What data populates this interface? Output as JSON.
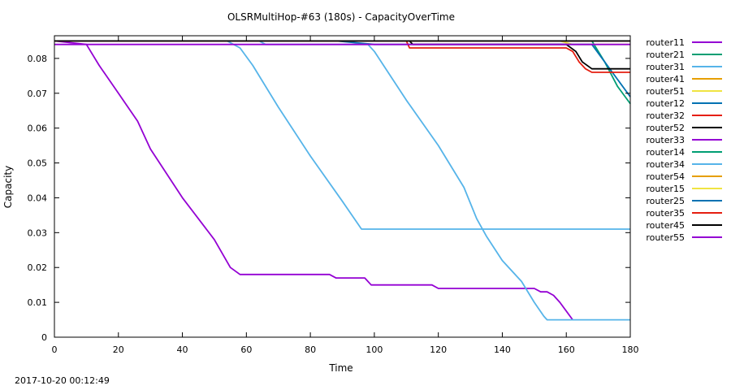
{
  "chart_data": {
    "type": "line",
    "title": "OLSRMultiHop-#63 (180s) - CapacityOverTime",
    "xlabel": "Time",
    "ylabel": "Capacity",
    "xlim": [
      0,
      180
    ],
    "ylim": [
      0,
      0.0865
    ],
    "xticks": [
      0,
      20,
      40,
      60,
      80,
      100,
      120,
      140,
      160,
      180
    ],
    "yticks": [
      0,
      0.01,
      0.02,
      0.03,
      0.04,
      0.05,
      0.06,
      0.07,
      0.08
    ],
    "ytick_labels": [
      "0",
      "0.01",
      "0.02",
      "0.03",
      "0.04",
      "0.05",
      "0.06",
      "0.07",
      "0.08"
    ],
    "grid": false,
    "legend_position": "right",
    "series": [
      {
        "name": "router11",
        "color": "#9400d3",
        "x": [
          0,
          180
        ],
        "y": [
          0.085,
          0.085
        ]
      },
      {
        "name": "router21",
        "color": "#009e73",
        "x": [
          0,
          168,
          172,
          176,
          180
        ],
        "y": [
          0.085,
          0.085,
          0.079,
          0.072,
          0.067
        ]
      },
      {
        "name": "router31",
        "color": "#56b4e9",
        "x": [
          0,
          54,
          58,
          62,
          70,
          80,
          90,
          96,
          99,
          100,
          180
        ],
        "y": [
          0.085,
          0.085,
          0.083,
          0.078,
          0.066,
          0.052,
          0.039,
          0.031,
          0.031,
          0.031,
          0.031
        ]
      },
      {
        "name": "router41",
        "color": "#e69f00",
        "x": [
          0,
          180
        ],
        "y": [
          0.085,
          0.085
        ]
      },
      {
        "name": "router51",
        "color": "#f0e442",
        "x": [
          0,
          150,
          158,
          162,
          180
        ],
        "y": [
          0.085,
          0.085,
          0.085,
          0.084,
          0.084
        ]
      },
      {
        "name": "router12",
        "color": "#0072b2",
        "x": [
          0,
          88,
          100,
          150,
          168,
          172,
          176,
          180
        ],
        "y": [
          0.085,
          0.085,
          0.084,
          0.084,
          0.084,
          0.079,
          0.074,
          0.069
        ]
      },
      {
        "name": "router32",
        "color": "#e51e10",
        "x": [
          0,
          110,
          111,
          160,
          162,
          164,
          166,
          168,
          180
        ],
        "y": [
          0.085,
          0.085,
          0.083,
          0.083,
          0.082,
          0.079,
          0.077,
          0.076,
          0.076
        ]
      },
      {
        "name": "router52",
        "color": "#000000",
        "x": [
          0,
          111,
          112,
          120,
          135,
          160,
          163,
          165,
          168,
          180
        ],
        "y": [
          0.085,
          0.085,
          0.084,
          0.084,
          0.084,
          0.084,
          0.082,
          0.079,
          0.077,
          0.077
        ]
      },
      {
        "name": "router33",
        "color": "#9400d3",
        "x": [
          0,
          10,
          14,
          20,
          26,
          30,
          40,
          50,
          55,
          58,
          60,
          86,
          88,
          97,
          99,
          100,
          118,
          120,
          150,
          152,
          154,
          156,
          158,
          162
        ],
        "y": [
          0.085,
          0.084,
          0.078,
          0.07,
          0.062,
          0.054,
          0.04,
          0.028,
          0.02,
          0.018,
          0.018,
          0.018,
          0.017,
          0.017,
          0.015,
          0.015,
          0.015,
          0.014,
          0.014,
          0.013,
          0.013,
          0.012,
          0.01,
          0.005
        ]
      },
      {
        "name": "router14",
        "color": "#009e73",
        "x": [
          0,
          180
        ],
        "y": [
          0.085,
          0.085
        ]
      },
      {
        "name": "router34",
        "color": "#56b4e9",
        "x": [
          0,
          64,
          66,
          96,
          98,
          100,
          110,
          120,
          128,
          132,
          135,
          140,
          146,
          150,
          153,
          154,
          180
        ],
        "y": [
          0.085,
          0.085,
          0.084,
          0.084,
          0.084,
          0.082,
          0.068,
          0.055,
          0.043,
          0.034,
          0.029,
          0.022,
          0.016,
          0.01,
          0.006,
          0.005,
          0.005
        ]
      },
      {
        "name": "router54",
        "color": "#e69f00",
        "x": [
          0,
          180
        ],
        "y": [
          0.085,
          0.085
        ]
      },
      {
        "name": "router15",
        "color": "#f0e442",
        "x": [
          0,
          180
        ],
        "y": [
          0.085,
          0.085
        ]
      },
      {
        "name": "router25",
        "color": "#0072b2",
        "x": [
          0,
          180
        ],
        "y": [
          0.085,
          0.085
        ]
      },
      {
        "name": "router35",
        "color": "#e51e10",
        "x": [
          0,
          180
        ],
        "y": [
          0.085,
          0.085
        ]
      },
      {
        "name": "router45",
        "color": "#000000",
        "x": [
          0,
          180
        ],
        "y": [
          0.085,
          0.085
        ]
      },
      {
        "name": "router55",
        "color": "#9400d3",
        "x": [
          0,
          180
        ],
        "y": [
          0.084,
          0.084
        ]
      }
    ]
  },
  "footer": {
    "timestamp": "2017-10-20 00:12:49"
  }
}
